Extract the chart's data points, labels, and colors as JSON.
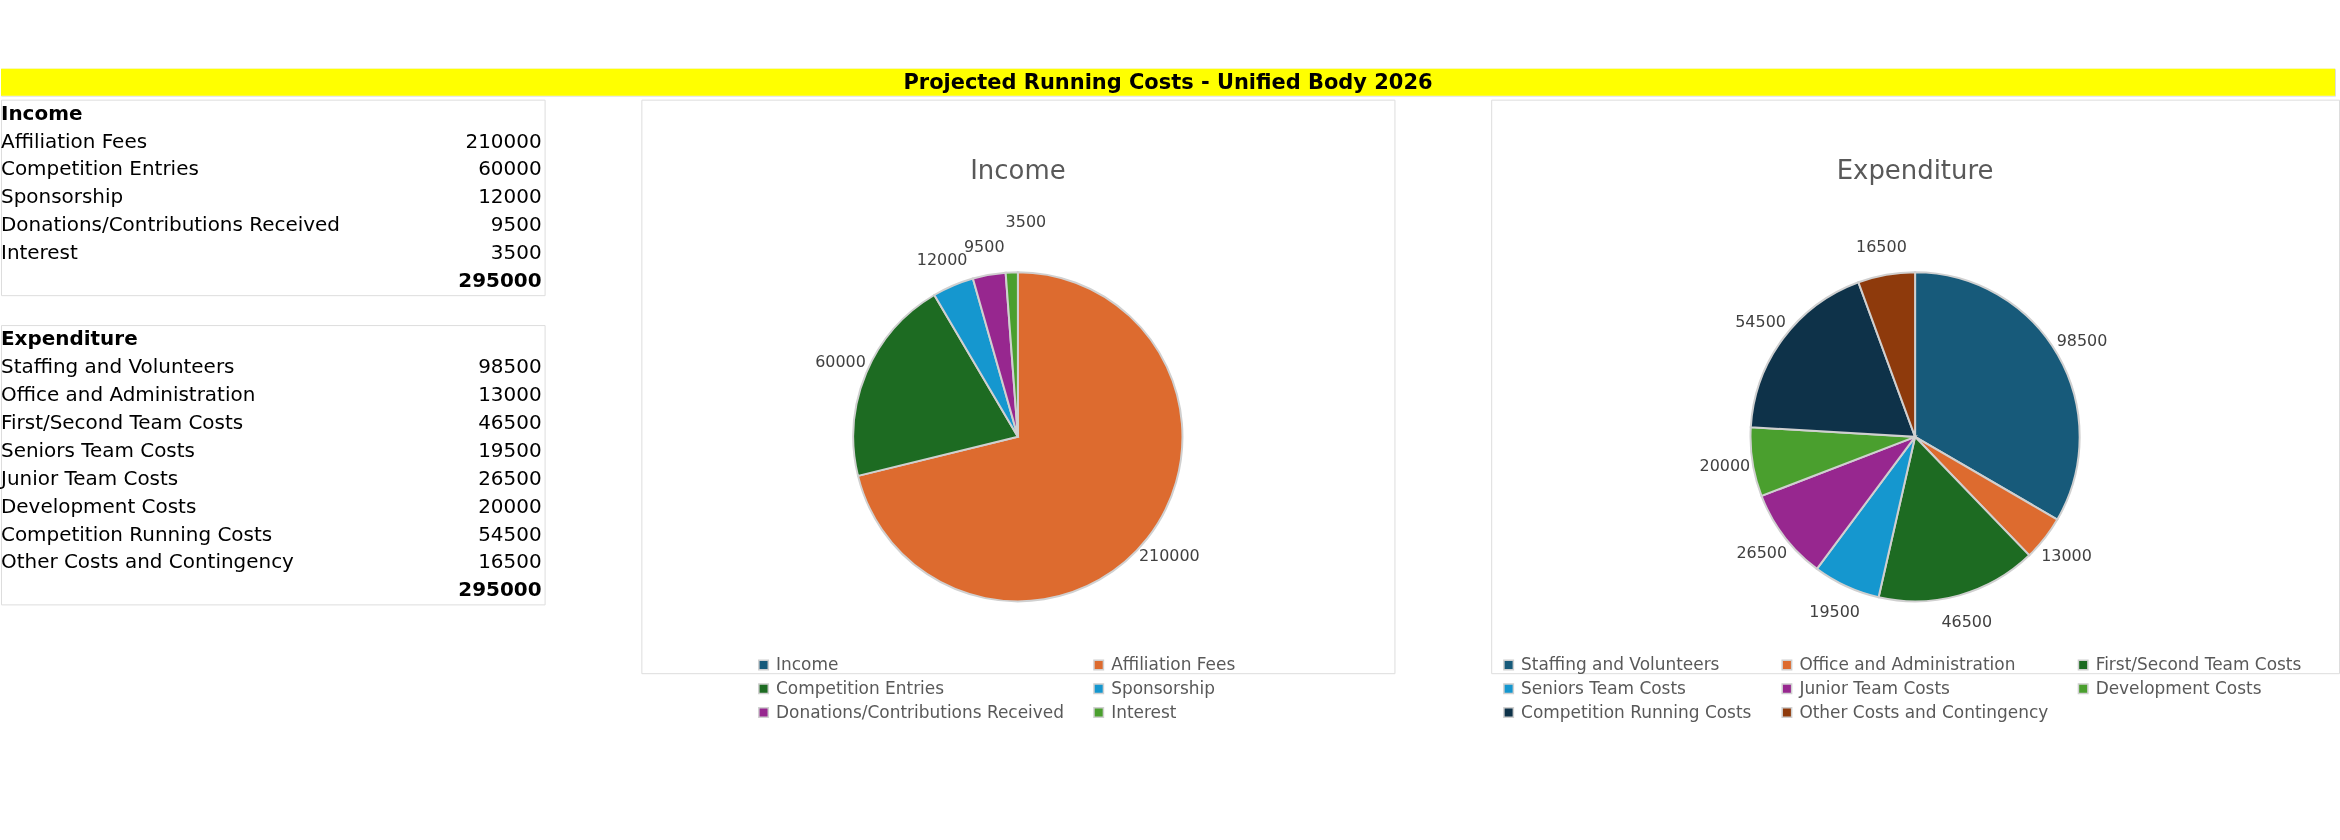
{
  "chart_data": [
    {
      "type": "other",
      "title": "Projected Running Costs - Unified Body 2026"
    },
    {
      "type": "other",
      "title": "Income",
      "categories": [
        "Affiliation Fees",
        "Competition Entries",
        "Sponsorship",
        "Donations/Contributions Received",
        "Interest"
      ],
      "values": [
        210000,
        60000,
        12000,
        9500,
        3500
      ],
      "data_labels": true,
      "totals": [
        "295000"
      ]
    },
    {
      "type": "other",
      "title": "Expenditure",
      "categories": [
        "Staffing and Volunteers",
        "Office and Administration",
        "First/Second Team Costs",
        "Seniors Team Costs",
        "Junior Team Costs",
        "Development Costs",
        "Competition Running Costs",
        "Other Costs and Contingency"
      ],
      "values": [
        98500,
        13000,
        46500,
        19500,
        26500,
        20000,
        54500,
        16500
      ],
      "data_labels": true,
      "totals": [
        "295000"
      ]
    },
    {
      "type": "pie",
      "title": "Income",
      "categories": [
        "Income",
        "Affiliation Fees",
        "Competition Entries",
        "Sponsorship",
        "Donations/Contributions Received",
        "Interest"
      ],
      "values": [
        null,
        210000,
        60000,
        12000,
        9500,
        3500
      ],
      "colors": [
        "#175a7a",
        "#dd6b2f",
        "#1d6b22",
        "#1597cf",
        "#97278f",
        "#4a9f2e"
      ],
      "data_labels": true,
      "legend": "bottom"
    },
    {
      "type": "pie",
      "title": "Expenditure",
      "categories": [
        "Staffing and Volunteers",
        "Office and Administration",
        "First/Second Team Costs",
        "Seniors Team Costs",
        "Junior Team Costs",
        "Development Costs",
        "Competition Running Costs",
        "Other Costs and Contingency"
      ],
      "values": [
        98500,
        13000,
        46500,
        19500,
        26500,
        20000,
        54500,
        16500
      ],
      "colors": [
        "#175a7a",
        "#dd6b2f",
        "#1d6b22",
        "#1597cf",
        "#97278f",
        "#4a9f2e",
        "#0e3249",
        "#8e3a0c"
      ],
      "data_labels": true,
      "legend": "bottom"
    }
  ]
}
